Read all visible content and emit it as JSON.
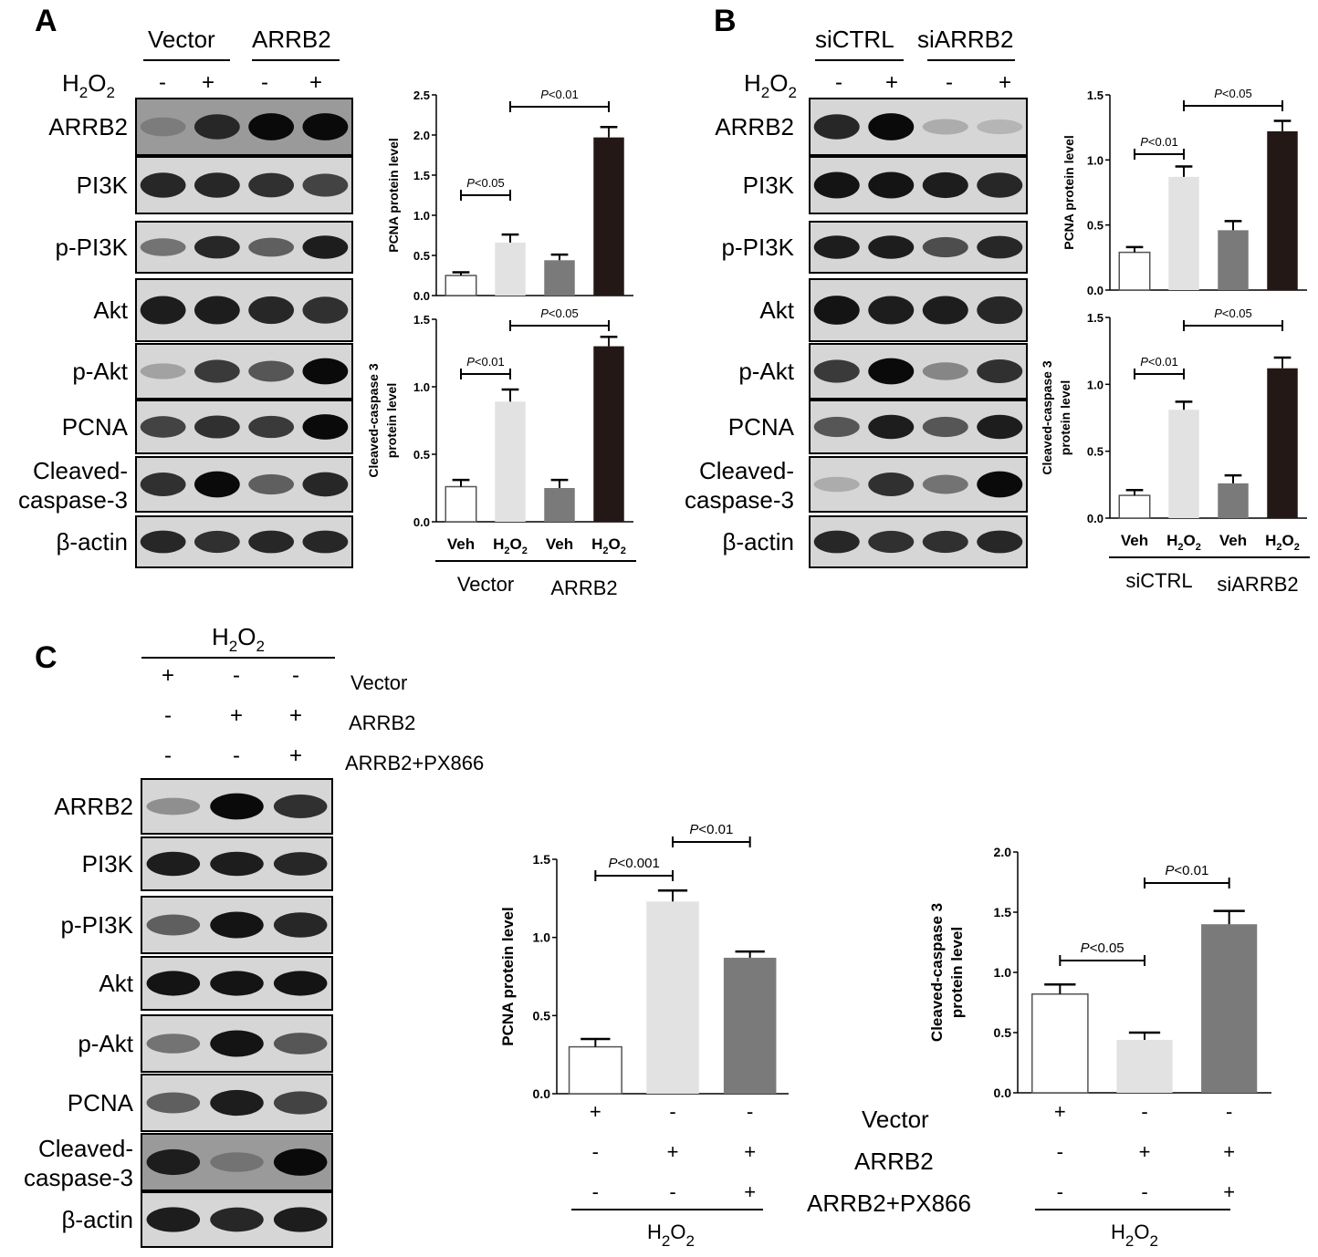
{
  "panels": [
    {
      "label": "A",
      "blot": {
        "groups": [
          "Vector",
          "ARRB2"
        ],
        "treatment": {
          "base": "H",
          "sub": "2",
          "tail": "O",
          "tail_sub": "2"
        },
        "lane_signs": [
          "-",
          "+",
          "-",
          "+"
        ],
        "proteins": [
          "ARRB2",
          "PI3K",
          "p-PI3K",
          "Akt",
          "p-Akt",
          "PCNA",
          "Cleaved-caspase-3",
          "β-actin"
        ],
        "band_intensity": [
          [
            0.4,
            0.85,
            1.0,
            1.0
          ],
          [
            0.85,
            0.85,
            0.8,
            0.7
          ],
          [
            0.45,
            0.85,
            0.55,
            0.9
          ],
          [
            0.9,
            0.9,
            0.85,
            0.8
          ],
          [
            0.2,
            0.75,
            0.6,
            1.0
          ],
          [
            0.7,
            0.8,
            0.75,
            1.0
          ],
          [
            0.8,
            1.0,
            0.55,
            0.85
          ],
          [
            0.85,
            0.8,
            0.85,
            0.85
          ]
        ],
        "dark_background": [
          true,
          false,
          false,
          false,
          false,
          false,
          false,
          false
        ]
      },
      "x_tick_labels": [
        "Veh",
        "H₂O₂",
        "Veh",
        "H₂O₂"
      ],
      "x_groups": [
        "Vector",
        "ARRB2"
      ]
    },
    {
      "label": "B",
      "blot": {
        "groups": [
          "siCTRL",
          "siARRB2"
        ],
        "treatment": {
          "base": "H",
          "sub": "2",
          "tail": "O",
          "tail_sub": "2"
        },
        "lane_signs": [
          "-",
          "+",
          "-",
          "+"
        ],
        "proteins": [
          "ARRB2",
          "PI3K",
          "p-PI3K",
          "Akt",
          "p-Akt",
          "PCNA",
          "Cleaved-caspase-3",
          "β-actin"
        ],
        "band_intensity": [
          [
            0.85,
            1.0,
            0.15,
            0.1
          ],
          [
            0.95,
            0.95,
            0.9,
            0.85
          ],
          [
            0.9,
            0.9,
            0.65,
            0.85
          ],
          [
            0.95,
            0.9,
            0.9,
            0.85
          ],
          [
            0.75,
            1.0,
            0.35,
            0.8
          ],
          [
            0.6,
            0.9,
            0.6,
            0.9
          ],
          [
            0.15,
            0.8,
            0.45,
            1.0
          ],
          [
            0.85,
            0.8,
            0.8,
            0.85
          ]
        ],
        "dark_background": [
          false,
          false,
          false,
          false,
          false,
          false,
          false,
          false
        ]
      },
      "x_tick_labels": [
        "Veh",
        "H₂O₂",
        "Veh",
        "H₂O₂"
      ],
      "x_groups": [
        "siCTRL",
        "siARRB2"
      ]
    },
    {
      "label": "C",
      "blot": {
        "treatment": {
          "base": "H",
          "sub": "2",
          "tail": "O",
          "tail_sub": "2"
        },
        "conditions": [
          {
            "name": "Vector",
            "signs": [
              "+",
              "-",
              "-"
            ]
          },
          {
            "name": "ARRB2",
            "signs": [
              "-",
              "+",
              "+"
            ]
          },
          {
            "name": "ARRB2+PX866",
            "signs": [
              "-",
              "-",
              "+"
            ]
          }
        ],
        "proteins": [
          "ARRB2",
          "PI3K",
          "p-PI3K",
          "Akt",
          "p-Akt",
          "PCNA",
          "Cleaved-caspase-3",
          "β-actin"
        ],
        "band_intensity": [
          [
            0.3,
            1.0,
            0.8
          ],
          [
            0.9,
            0.9,
            0.85
          ],
          [
            0.55,
            0.95,
            0.85
          ],
          [
            0.95,
            0.95,
            0.95
          ],
          [
            0.45,
            0.95,
            0.6
          ],
          [
            0.55,
            0.9,
            0.7
          ],
          [
            0.9,
            0.45,
            1.0
          ],
          [
            0.9,
            0.85,
            0.9
          ]
        ],
        "dark_background": [
          false,
          false,
          false,
          false,
          false,
          false,
          true,
          false
        ]
      },
      "conditions": [
        {
          "name": "Vector",
          "signs": [
            "+",
            "-",
            "-"
          ]
        },
        {
          "name": "ARRB2",
          "signs": [
            "-",
            "+",
            "+"
          ]
        },
        {
          "name": "ARRB2+PX866",
          "signs": [
            "-",
            "-",
            "+"
          ]
        }
      ],
      "treatment": {
        "base": "H",
        "sub": "2",
        "tail": "O",
        "tail_sub": "2"
      }
    }
  ],
  "colors": {
    "bar_fills": [
      "#ffffff",
      "#e2e2e2",
      "#7a7a7a",
      "#231815"
    ],
    "bar_fills_c": [
      "#ffffff",
      "#e2e2e2",
      "#7a7a7a"
    ]
  },
  "chart_data": [
    {
      "id": "A1",
      "type": "bar",
      "ylabel": "PCNA protein level",
      "categories": [
        "Veh",
        "H₂O₂",
        "Veh",
        "H₂O₂"
      ],
      "groups": [
        "Vector",
        "ARRB2"
      ],
      "values": [
        0.25,
        0.66,
        0.44,
        1.97
      ],
      "errors": [
        0.04,
        0.1,
        0.07,
        0.13
      ],
      "ylim": [
        0,
        2.5
      ],
      "yticks": [
        "0.0",
        "0.5",
        "1.0",
        "1.5",
        "2.0",
        "2.5"
      ],
      "comparisons": [
        {
          "bars": [
            0,
            1
          ],
          "label": "P<0.05"
        },
        {
          "bars": [
            1,
            3
          ],
          "label": "P<0.01"
        }
      ]
    },
    {
      "id": "A2",
      "type": "bar",
      "ylabel": [
        "Cleaved-caspase 3",
        "protein level"
      ],
      "categories": [
        "Veh",
        "H₂O₂",
        "Veh",
        "H₂O₂"
      ],
      "groups": [
        "Vector",
        "ARRB2"
      ],
      "values": [
        0.26,
        0.89,
        0.25,
        1.3
      ],
      "errors": [
        0.05,
        0.09,
        0.06,
        0.07
      ],
      "ylim": [
        0,
        1.5
      ],
      "yticks": [
        "0.0",
        "0.5",
        "1.0",
        "1.5"
      ],
      "comparisons": [
        {
          "bars": [
            0,
            1
          ],
          "label": "P<0.01"
        },
        {
          "bars": [
            1,
            3
          ],
          "label": "P<0.05"
        }
      ]
    },
    {
      "id": "B1",
      "type": "bar",
      "ylabel": "PCNA protein level",
      "categories": [
        "Veh",
        "H₂O₂",
        "Veh",
        "H₂O₂"
      ],
      "groups": [
        "siCTRL",
        "siARRB2"
      ],
      "values": [
        0.29,
        0.87,
        0.46,
        1.22
      ],
      "errors": [
        0.04,
        0.08,
        0.07,
        0.08
      ],
      "ylim": [
        0,
        1.5
      ],
      "yticks": [
        "0.0",
        "0.5",
        "1.0",
        "1.5"
      ],
      "comparisons": [
        {
          "bars": [
            0,
            1
          ],
          "label": "P<0.01"
        },
        {
          "bars": [
            1,
            3
          ],
          "label": "P<0.05"
        }
      ]
    },
    {
      "id": "B2",
      "type": "bar",
      "ylabel": [
        "Cleaved-caspase 3",
        "protein level"
      ],
      "categories": [
        "Veh",
        "H₂O₂",
        "Veh",
        "H₂O₂"
      ],
      "groups": [
        "siCTRL",
        "siARRB2"
      ],
      "values": [
        0.17,
        0.81,
        0.26,
        1.12
      ],
      "errors": [
        0.04,
        0.06,
        0.06,
        0.08
      ],
      "ylim": [
        0,
        1.5
      ],
      "yticks": [
        "0.0",
        "0.5",
        "1.0",
        "1.5"
      ],
      "comparisons": [
        {
          "bars": [
            0,
            1
          ],
          "label": "P<0.01"
        },
        {
          "bars": [
            1,
            3
          ],
          "label": "P<0.05"
        }
      ]
    },
    {
      "id": "C1",
      "type": "bar",
      "ylabel": "PCNA protein level",
      "categories": [
        "Vector",
        "ARRB2",
        "ARRB2+PX866"
      ],
      "values": [
        0.3,
        1.23,
        0.87
      ],
      "errors": [
        0.05,
        0.07,
        0.04
      ],
      "ylim": [
        0,
        1.5
      ],
      "yticks": [
        "0.0",
        "0.5",
        "1.0",
        "1.5"
      ],
      "comparisons": [
        {
          "bars": [
            0,
            1
          ],
          "label": "P<0.001"
        },
        {
          "bars": [
            1,
            2
          ],
          "label": "P<0.01"
        }
      ]
    },
    {
      "id": "C2",
      "type": "bar",
      "ylabel": [
        "Cleaved-caspase 3",
        "protein level"
      ],
      "categories": [
        "Vector",
        "ARRB2",
        "ARRB2+PX866"
      ],
      "values": [
        0.82,
        0.44,
        1.4
      ],
      "errors": [
        0.08,
        0.06,
        0.11
      ],
      "ylim": [
        0,
        2.0
      ],
      "yticks": [
        "0.0",
        "0.5",
        "1.0",
        "1.5",
        "2.0"
      ],
      "comparisons": [
        {
          "bars": [
            0,
            1
          ],
          "label": "P<0.05"
        },
        {
          "bars": [
            1,
            2
          ],
          "label": "P<0.01"
        }
      ]
    }
  ]
}
